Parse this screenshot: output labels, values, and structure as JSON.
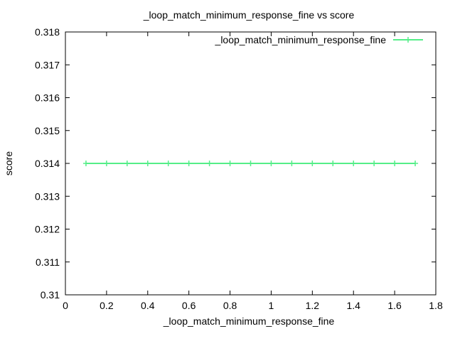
{
  "chart_data": {
    "type": "line",
    "title": "_loop_match_minimum_response_fine vs score",
    "xlabel": "_loop_match_minimum_response_fine",
    "ylabel": "score",
    "xlim": [
      0,
      1.8
    ],
    "ylim": [
      0.31,
      0.318
    ],
    "xticks": [
      "0",
      "0.2",
      "0.4",
      "0.6",
      "0.8",
      "1",
      "1.2",
      "1.4",
      "1.6",
      "1.8"
    ],
    "yticks": [
      "0.31",
      "0.311",
      "0.312",
      "0.313",
      "0.314",
      "0.315",
      "0.316",
      "0.317",
      "0.318"
    ],
    "legend_position": "top-right",
    "grid": false,
    "series": [
      {
        "name": "_loop_match_minimum_response_fine",
        "color": "#55ee88",
        "marker": "plus",
        "x": [
          0.1,
          0.2,
          0.3,
          0.4,
          0.5,
          0.6,
          0.7,
          0.8,
          0.9,
          1.0,
          1.1,
          1.2,
          1.3,
          1.4,
          1.5,
          1.6,
          1.7
        ],
        "y": [
          0.314,
          0.314,
          0.314,
          0.314,
          0.314,
          0.314,
          0.314,
          0.314,
          0.314,
          0.314,
          0.314,
          0.314,
          0.314,
          0.314,
          0.314,
          0.314,
          0.314
        ]
      }
    ]
  }
}
